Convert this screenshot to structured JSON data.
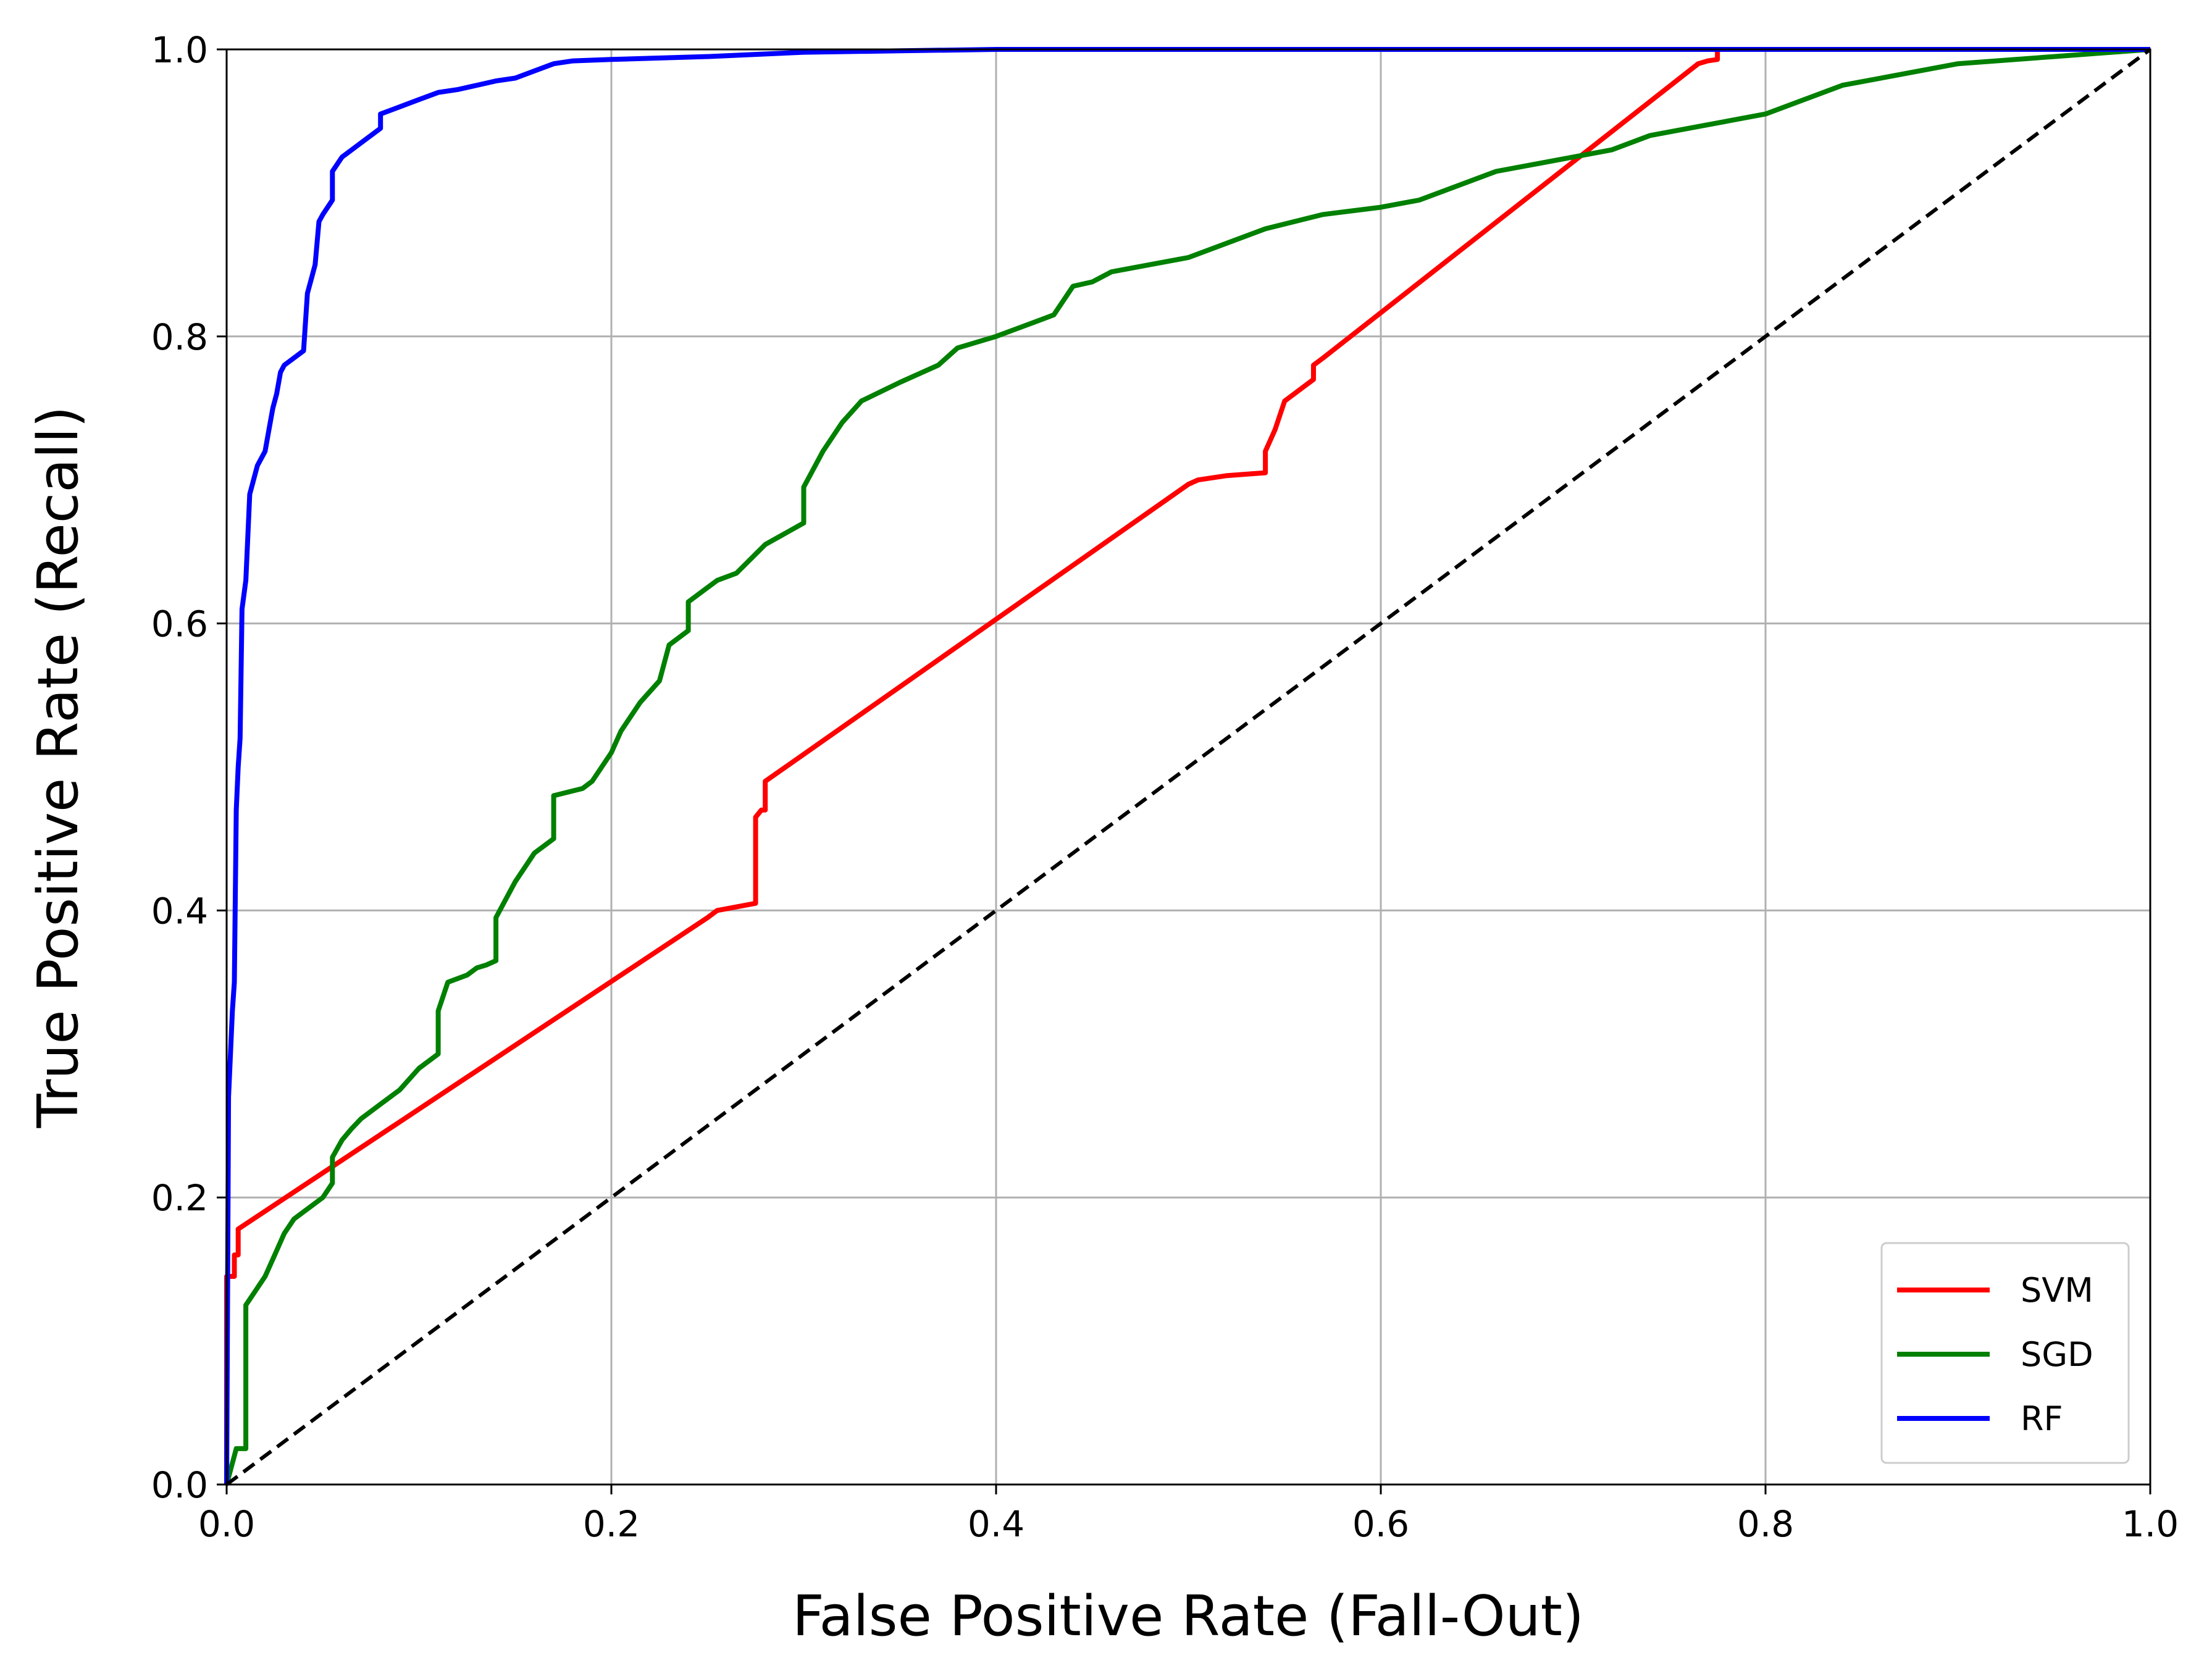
{
  "chart_data": {
    "type": "line",
    "title": "",
    "xlabel": "False Positive Rate (Fall-Out)",
    "ylabel": "True Positive Rate (Recall)",
    "xlim": [
      0.0,
      1.0
    ],
    "ylim": [
      0.0,
      1.0
    ],
    "x_ticks": [
      "0.0",
      "0.2",
      "0.4",
      "0.6",
      "0.8",
      "1.0"
    ],
    "y_ticks": [
      "0.0",
      "0.2",
      "0.4",
      "0.6",
      "0.8",
      "1.0"
    ],
    "grid": true,
    "legend_position": "lower right",
    "series": [
      {
        "name": "SVM",
        "color": "#ff0000",
        "style": "solid",
        "x": [
          0.0,
          0.0,
          0.004,
          0.004,
          0.006,
          0.006,
          0.25,
          0.255,
          0.275,
          0.275,
          0.278,
          0.28,
          0.28,
          0.5,
          0.505,
          0.52,
          0.54,
          0.54,
          0.545,
          0.55,
          0.555,
          0.56,
          0.565,
          0.565,
          0.57,
          0.765,
          0.77,
          0.775,
          0.775,
          0.78,
          0.8,
          1.0
        ],
        "y": [
          0.0,
          0.145,
          0.145,
          0.16,
          0.16,
          0.178,
          0.395,
          0.4,
          0.405,
          0.465,
          0.47,
          0.47,
          0.49,
          0.697,
          0.7,
          0.703,
          0.705,
          0.72,
          0.735,
          0.755,
          0.76,
          0.765,
          0.77,
          0.78,
          0.785,
          0.99,
          0.992,
          0.993,
          1.0,
          1.0,
          1.0,
          1.0
        ]
      },
      {
        "name": "SGD",
        "color": "#008000",
        "style": "solid",
        "x": [
          0.0,
          0.005,
          0.01,
          0.01,
          0.015,
          0.02,
          0.025,
          0.03,
          0.035,
          0.04,
          0.045,
          0.05,
          0.055,
          0.055,
          0.06,
          0.065,
          0.07,
          0.08,
          0.09,
          0.1,
          0.11,
          0.11,
          0.115,
          0.125,
          0.13,
          0.135,
          0.14,
          0.14,
          0.15,
          0.16,
          0.17,
          0.17,
          0.185,
          0.19,
          0.2,
          0.205,
          0.215,
          0.225,
          0.23,
          0.24,
          0.24,
          0.255,
          0.265,
          0.28,
          0.3,
          0.3,
          0.31,
          0.32,
          0.33,
          0.35,
          0.37,
          0.38,
          0.4,
          0.42,
          0.43,
          0.44,
          0.45,
          0.46,
          0.48,
          0.5,
          0.52,
          0.54,
          0.57,
          0.6,
          0.62,
          0.64,
          0.66,
          0.68,
          0.7,
          0.72,
          0.74,
          0.76,
          0.8,
          0.84,
          0.9,
          0.95,
          1.0
        ],
        "y": [
          0.0,
          0.025,
          0.025,
          0.125,
          0.135,
          0.145,
          0.16,
          0.175,
          0.185,
          0.19,
          0.195,
          0.2,
          0.21,
          0.228,
          0.24,
          0.248,
          0.255,
          0.265,
          0.275,
          0.29,
          0.3,
          0.33,
          0.35,
          0.355,
          0.36,
          0.362,
          0.365,
          0.395,
          0.42,
          0.44,
          0.45,
          0.48,
          0.485,
          0.49,
          0.51,
          0.525,
          0.545,
          0.56,
          0.585,
          0.595,
          0.615,
          0.63,
          0.635,
          0.655,
          0.67,
          0.695,
          0.72,
          0.74,
          0.755,
          0.768,
          0.78,
          0.792,
          0.8,
          0.81,
          0.815,
          0.835,
          0.838,
          0.845,
          0.85,
          0.855,
          0.865,
          0.875,
          0.885,
          0.89,
          0.895,
          0.905,
          0.915,
          0.92,
          0.925,
          0.93,
          0.94,
          0.945,
          0.955,
          0.975,
          0.99,
          0.995,
          1.0
        ]
      },
      {
        "name": "RF",
        "color": "#0000ff",
        "style": "solid",
        "x": [
          0.0,
          0.001,
          0.002,
          0.003,
          0.004,
          0.005,
          0.006,
          0.007,
          0.008,
          0.01,
          0.012,
          0.014,
          0.016,
          0.018,
          0.02,
          0.022,
          0.024,
          0.026,
          0.028,
          0.03,
          0.035,
          0.04,
          0.042,
          0.044,
          0.046,
          0.048,
          0.05,
          0.055,
          0.055,
          0.06,
          0.065,
          0.07,
          0.075,
          0.08,
          0.08,
          0.09,
          0.1,
          0.11,
          0.12,
          0.13,
          0.14,
          0.15,
          0.16,
          0.17,
          0.18,
          0.2,
          0.25,
          0.3,
          0.35,
          0.4,
          0.5,
          1.0
        ],
        "y": [
          0.0,
          0.27,
          0.3,
          0.33,
          0.35,
          0.47,
          0.5,
          0.52,
          0.61,
          0.63,
          0.69,
          0.7,
          0.71,
          0.715,
          0.72,
          0.735,
          0.75,
          0.76,
          0.775,
          0.78,
          0.785,
          0.79,
          0.83,
          0.84,
          0.85,
          0.88,
          0.885,
          0.895,
          0.915,
          0.925,
          0.93,
          0.935,
          0.94,
          0.945,
          0.955,
          0.96,
          0.965,
          0.97,
          0.972,
          0.975,
          0.978,
          0.98,
          0.985,
          0.99,
          0.992,
          0.993,
          0.995,
          0.998,
          0.999,
          1.0,
          1.0,
          1.0
        ]
      },
      {
        "name": "",
        "color": "#000000",
        "style": "dashed",
        "x": [
          0.0,
          1.0
        ],
        "y": [
          0.0,
          1.0
        ]
      }
    ]
  }
}
